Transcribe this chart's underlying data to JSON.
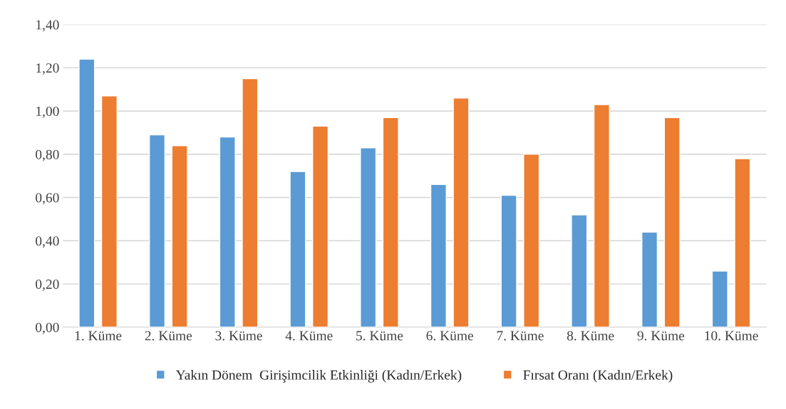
{
  "chart_data": {
    "type": "bar",
    "categories": [
      "1. Küme",
      "2. Küme",
      "3. Küme",
      "4. Küme",
      "5. Küme",
      "6. Küme",
      "7. Küme",
      "8. Küme",
      "9. Küme",
      "10. Küme"
    ],
    "series": [
      {
        "name": "Yakın Dönem  Girişimcilik Etkinliği (Kadın/Erkek)",
        "color": "#5b9bd5",
        "values": [
          1.24,
          0.89,
          0.88,
          0.72,
          0.83,
          0.66,
          0.61,
          0.52,
          0.44,
          0.26
        ]
      },
      {
        "name": "Fırsat Oranı (Kadın/Erkek)",
        "color": "#ed7d31",
        "values": [
          1.07,
          0.84,
          1.15,
          0.93,
          0.97,
          1.06,
          0.8,
          1.03,
          0.97,
          0.78
        ]
      }
    ],
    "ylim": [
      0,
      1.4
    ],
    "yticks": [
      {
        "value": 0,
        "label": "0,00"
      },
      {
        "value": 0.2,
        "label": "0,20"
      },
      {
        "value": 0.4,
        "label": "0,40"
      },
      {
        "value": 0.6,
        "label": "0,60"
      },
      {
        "value": 0.8,
        "label": "0,80"
      },
      {
        "value": 1.0,
        "label": "1,00"
      },
      {
        "value": 1.2,
        "label": "1,20"
      },
      {
        "value": 1.4,
        "label": "1,40"
      }
    ],
    "grid": "y",
    "legend": "bottom"
  }
}
